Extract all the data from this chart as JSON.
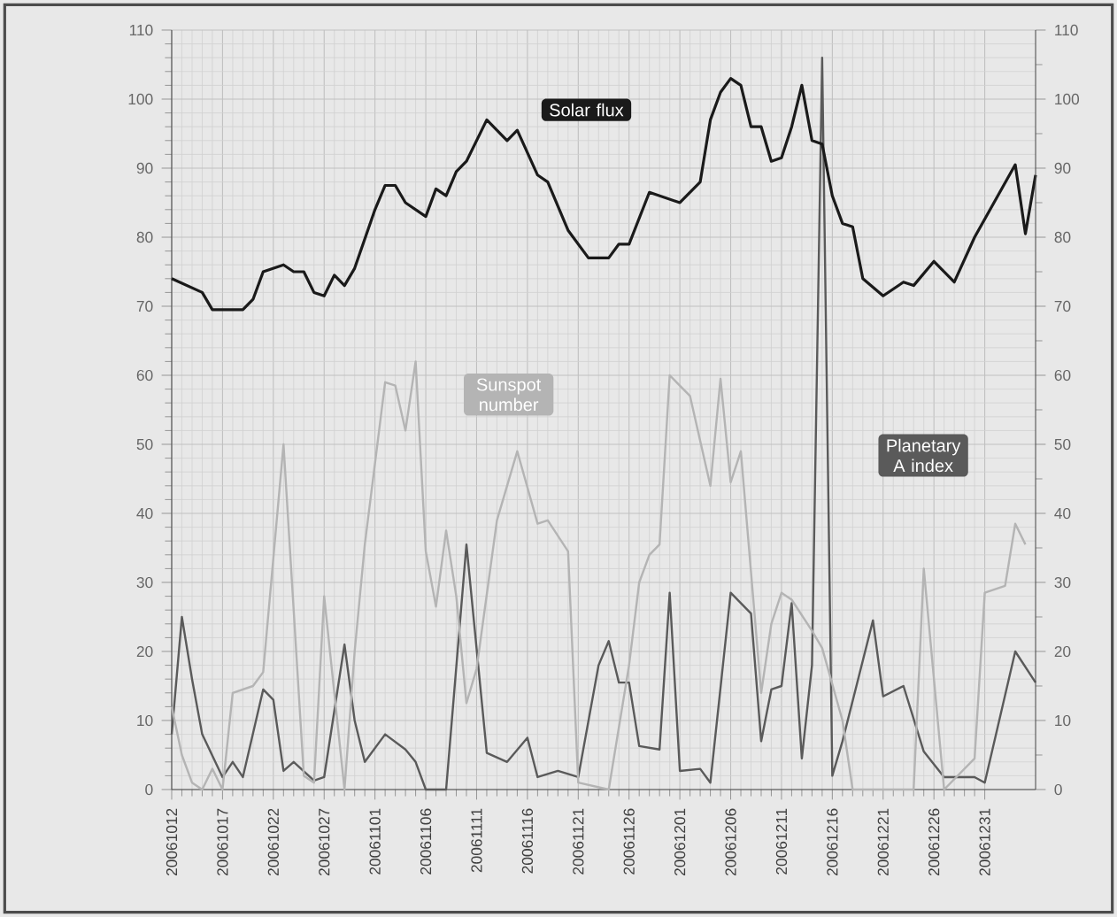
{
  "chart_data": {
    "type": "line",
    "grid": true,
    "xlim": [
      "2006-10-12",
      "2007-01-05"
    ],
    "xticks": [
      {
        "value": "2006-10-12",
        "label": "20061012"
      },
      {
        "value": "2006-10-17",
        "label": "20061017"
      },
      {
        "value": "2006-10-22",
        "label": "20061022"
      },
      {
        "value": "2006-10-27",
        "label": "20061027"
      },
      {
        "value": "2006-11-01",
        "label": "20061101"
      },
      {
        "value": "2006-11-06",
        "label": "20061106"
      },
      {
        "value": "2006-11-11",
        "label": "20061111"
      },
      {
        "value": "2006-11-16",
        "label": "20061116"
      },
      {
        "value": "2006-11-21",
        "label": "20061121"
      },
      {
        "value": "2006-11-26",
        "label": "20061126"
      },
      {
        "value": "2006-12-01",
        "label": "20061201"
      },
      {
        "value": "2006-12-06",
        "label": "20061206"
      },
      {
        "value": "2006-12-11",
        "label": "20061211"
      },
      {
        "value": "2006-12-16",
        "label": "20061216"
      },
      {
        "value": "2006-12-21",
        "label": "20061221"
      },
      {
        "value": "2006-12-26",
        "label": "20061226"
      },
      {
        "value": "2006-12-31",
        "label": "20061231"
      }
    ],
    "ylim": [
      0,
      110
    ],
    "yticks": [
      0,
      10,
      20,
      30,
      40,
      50,
      60,
      70,
      80,
      90,
      100,
      110
    ],
    "y2lim": [
      0,
      110
    ],
    "y2ticks": [
      0,
      10,
      20,
      30,
      40,
      50,
      60,
      70,
      80,
      90,
      100,
      110
    ],
    "series": [
      {
        "name": "Solar flux",
        "color": "#1a1a1a",
        "x": [
          "2006-10-12",
          "2006-10-15",
          "2006-10-16",
          "2006-10-19",
          "2006-10-20",
          "2006-10-21",
          "2006-10-23",
          "2006-10-24",
          "2006-10-25",
          "2006-10-26",
          "2006-10-27",
          "2006-10-28",
          "2006-10-29",
          "2006-10-30",
          "2006-11-01",
          "2006-11-02",
          "2006-11-03",
          "2006-11-04",
          "2006-11-06",
          "2006-11-07",
          "2006-11-08",
          "2006-11-09",
          "2006-11-10",
          "2006-11-12",
          "2006-11-13",
          "2006-11-14",
          "2006-11-15",
          "2006-11-17",
          "2006-11-18",
          "2006-11-20",
          "2006-11-22",
          "2006-11-24",
          "2006-11-25",
          "2006-11-26",
          "2006-11-28",
          "2006-12-01",
          "2006-12-03",
          "2006-12-04",
          "2006-12-05",
          "2006-12-06",
          "2006-12-07",
          "2006-12-08",
          "2006-12-09",
          "2006-12-10",
          "2006-12-11",
          "2006-12-12",
          "2006-12-13",
          "2006-12-14",
          "2006-12-15",
          "2006-12-16",
          "2006-12-17",
          "2006-12-18",
          "2006-12-19",
          "2006-12-21",
          "2006-12-23",
          "2006-12-24",
          "2006-12-26",
          "2006-12-28",
          "2006-12-30",
          "2007-01-03",
          "2007-01-04",
          "2007-01-05"
        ],
        "values": [
          74,
          72,
          69.5,
          69.5,
          71,
          75,
          76,
          75,
          75,
          72,
          71.5,
          74.5,
          73,
          75.5,
          84,
          87.5,
          87.5,
          85,
          83,
          87,
          86,
          89.5,
          91,
          97,
          95.5,
          94,
          95.5,
          89,
          88,
          81,
          77,
          77,
          79,
          79,
          86.5,
          85,
          88,
          97,
          101,
          103,
          102,
          96,
          96,
          91,
          91.5,
          96,
          102,
          94,
          93.5,
          86,
          82,
          81.5,
          74,
          71.5,
          73.5,
          73,
          76.5,
          73.5,
          80,
          90.5,
          80.5,
          89
        ]
      },
      {
        "name": "Sunspot number",
        "color": "#b4b4b4",
        "x": [
          "2006-10-12",
          "2006-10-13",
          "2006-10-14",
          "2006-10-15",
          "2006-10-16",
          "2006-10-17",
          "2006-10-18",
          "2006-10-20",
          "2006-10-21",
          "2006-10-23",
          "2006-10-25",
          "2006-10-26",
          "2006-10-27",
          "2006-10-29",
          "2006-10-30",
          "2006-10-31",
          "2006-11-02",
          "2006-11-03",
          "2006-11-04",
          "2006-11-05",
          "2006-11-06",
          "2006-11-07",
          "2006-11-08",
          "2006-11-09",
          "2006-11-10",
          "2006-11-11",
          "2006-11-13",
          "2006-11-15",
          "2006-11-17",
          "2006-11-18",
          "2006-11-20",
          "2006-11-21",
          "2006-11-24",
          "2006-11-26",
          "2006-11-27",
          "2006-11-28",
          "2006-11-29",
          "2006-11-30",
          "2006-12-02",
          "2006-12-04",
          "2006-12-05",
          "2006-12-06",
          "2006-12-07",
          "2006-12-09",
          "2006-12-10",
          "2006-12-11",
          "2006-12-12",
          "2006-12-14",
          "2006-12-15",
          "2006-12-17",
          "2006-12-18",
          "2006-12-24",
          "2006-12-25",
          "2006-12-27",
          "2006-12-30",
          "2006-12-31",
          "2007-01-02",
          "2007-01-03",
          "2007-01-04"
        ],
        "values": [
          12,
          5,
          1,
          0,
          3,
          0,
          14,
          15,
          17,
          50,
          2,
          1,
          28,
          0,
          20,
          35.5,
          59,
          58.5,
          52,
          62,
          34.5,
          26.5,
          37.5,
          28,
          12.5,
          17.5,
          39,
          49,
          38.5,
          39,
          34.5,
          1,
          0,
          18,
          30,
          34,
          35.5,
          60,
          57,
          44,
          59.5,
          44.5,
          49,
          14,
          24,
          28.5,
          27.5,
          23,
          20.5,
          10,
          0,
          0,
          32,
          0,
          4.5,
          28.5,
          29.5,
          38.5,
          35.5
        ]
      },
      {
        "name": "Planetary A index",
        "color": "#5a5a5a",
        "x": [
          "2006-10-12",
          "2006-10-13",
          "2006-10-14",
          "2006-10-15",
          "2006-10-17",
          "2006-10-18",
          "2006-10-19",
          "2006-10-21",
          "2006-10-22",
          "2006-10-23",
          "2006-10-24",
          "2006-10-26",
          "2006-10-27",
          "2006-10-29",
          "2006-10-30",
          "2006-10-31",
          "2006-11-02",
          "2006-11-04",
          "2006-11-05",
          "2006-11-06",
          "2006-11-08",
          "2006-11-10",
          "2006-11-12",
          "2006-11-14",
          "2006-11-16",
          "2006-11-17",
          "2006-11-19",
          "2006-11-21",
          "2006-11-23",
          "2006-11-24",
          "2006-11-25",
          "2006-11-26",
          "2006-11-27",
          "2006-11-29",
          "2006-11-30",
          "2006-12-01",
          "2006-12-03",
          "2006-12-04",
          "2006-12-06",
          "2006-12-08",
          "2006-12-09",
          "2006-12-10",
          "2006-12-11",
          "2006-12-12",
          "2006-12-13",
          "2006-12-14",
          "2006-12-15",
          "2006-12-16",
          "2006-12-17",
          "2006-12-20",
          "2006-12-21",
          "2006-12-23",
          "2006-12-25",
          "2006-12-27",
          "2006-12-30",
          "2006-12-31",
          "2007-01-03",
          "2007-01-05"
        ],
        "values": [
          8,
          25,
          16,
          8,
          1.8,
          4,
          1.8,
          14.5,
          13,
          2.7,
          4,
          1.3,
          1.8,
          21,
          10,
          4,
          8,
          5.8,
          4,
          0,
          0,
          35.5,
          5.3,
          4,
          7.5,
          1.8,
          2.7,
          1.8,
          18,
          21.5,
          15.5,
          15.5,
          6.3,
          5.8,
          28.5,
          2.7,
          3,
          1,
          28.5,
          25.5,
          7,
          14.5,
          15,
          27,
          4.5,
          18,
          106,
          2,
          7,
          24.5,
          13.5,
          15,
          5.5,
          1.8,
          1.8,
          1,
          20,
          15.5
        ]
      }
    ]
  }
}
